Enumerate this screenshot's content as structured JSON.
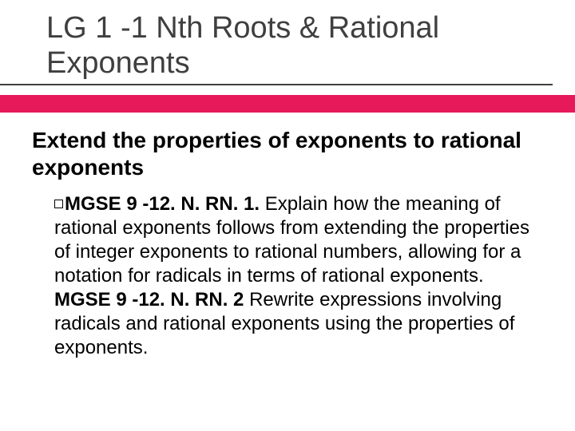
{
  "title": "LG 1 -1 Nth Roots & Rational Exponents",
  "accent_color": "#e6195b",
  "subtitle": "Extend the properties of exponents to rational exponents",
  "standard": {
    "code1": "MGSE 9 -12. N. RN. 1.",
    "text1": " Explain how the meaning of rational exponents follows from extending the properties of integer exponents to rational numbers, allowing for a notation for radicals in terms of rational exponents. ",
    "code2": "MGSE 9 -12. N. RN. 2",
    "text2": " Rewrite expressions involving radicals and rational exponents using the properties of exponents."
  },
  "style": {
    "title_fontsize": 38,
    "title_color": "#3f3f3f",
    "subtitle_fontsize": 28,
    "body_fontsize": 24,
    "background_color": "#ffffff",
    "underline_color": "#3f3f3f"
  }
}
